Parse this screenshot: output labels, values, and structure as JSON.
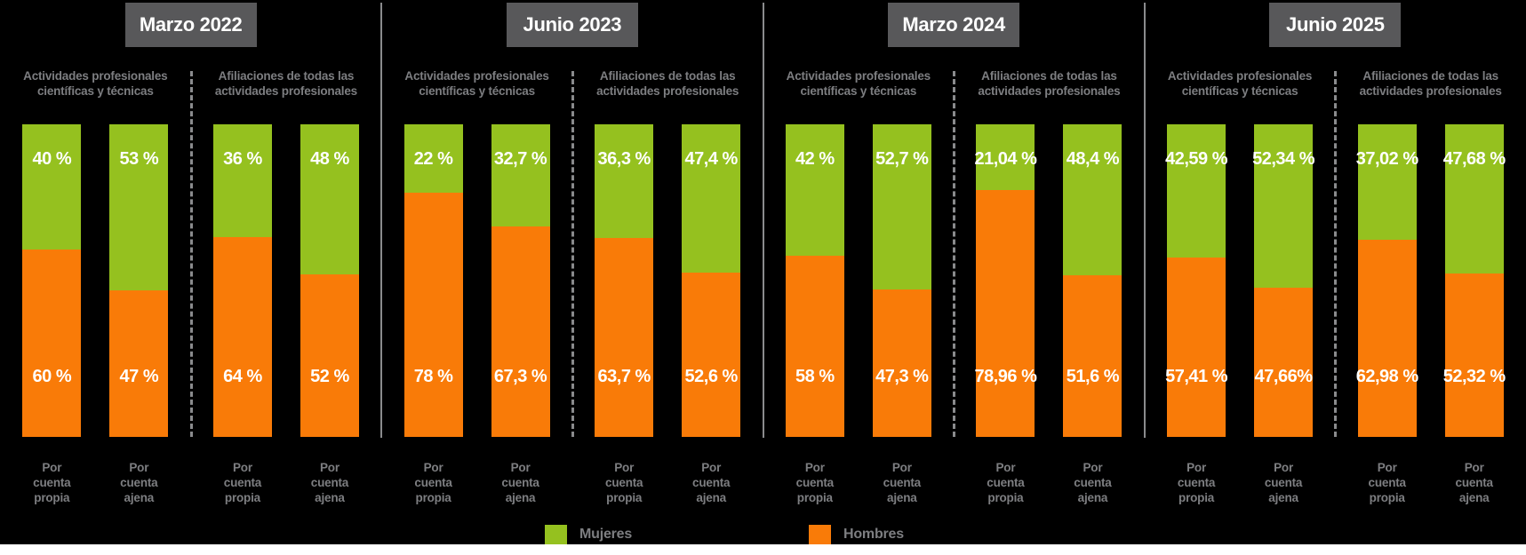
{
  "page": {
    "background_color": "#000000",
    "bottom_strip_color": "#ffffff"
  },
  "chart_data": {
    "type": "bar",
    "subtype": "stacked-100-percent",
    "orientation": "vertical",
    "unit": "%",
    "grid": false,
    "legend_position": "bottom-center",
    "colors": {
      "mujeres": "#95c11f",
      "hombres": "#f97b08",
      "period_header_box": "#58585a",
      "period_header_text": "#ffffff",
      "value_text": "#ffffff",
      "label_gray": "#7d7e81",
      "divider_gray": "#8a8b8d"
    },
    "legend": [
      {
        "label": "Mujeres",
        "color": "#95c11f"
      },
      {
        "label": "Hombres",
        "color": "#f97b08"
      }
    ],
    "periods": [
      {
        "title": "Marzo 2022",
        "groups": [
          {
            "category": "Actividades profesionales\ncientíficas y técnicas",
            "bars": [
              {
                "x_label": "Por cuenta\npropia",
                "mujeres_pct": 40,
                "hombres_pct": 60,
                "mujeres_label": "40 %",
                "hombres_label": "60 %"
              },
              {
                "x_label": "Por cuenta\najena",
                "mujeres_pct": 53,
                "hombres_pct": 47,
                "mujeres_label": "53 %",
                "hombres_label": "47 %"
              }
            ]
          },
          {
            "category": "Afiliaciones de todas las\nactividades profesionales",
            "bars": [
              {
                "x_label": "Por cuenta\npropia",
                "mujeres_pct": 36,
                "hombres_pct": 64,
                "mujeres_label": "36 %",
                "hombres_label": "64 %"
              },
              {
                "x_label": "Por cuenta\najena",
                "mujeres_pct": 48,
                "hombres_pct": 52,
                "mujeres_label": "48 %",
                "hombres_label": "52 %"
              }
            ]
          }
        ]
      },
      {
        "title": "Junio 2023",
        "groups": [
          {
            "category": "Actividades profesionales\ncientíficas y técnicas",
            "bars": [
              {
                "x_label": "Por cuenta\npropia",
                "mujeres_pct": 22,
                "hombres_pct": 78,
                "mujeres_label": "22 %",
                "hombres_label": "78 %"
              },
              {
                "x_label": "Por cuenta\najena",
                "mujeres_pct": 32.7,
                "hombres_pct": 67.3,
                "mujeres_label": "32,7 %",
                "hombres_label": "67,3 %"
              }
            ]
          },
          {
            "category": "Afiliaciones de todas las\nactividades profesionales",
            "bars": [
              {
                "x_label": "Por cuenta\npropia",
                "mujeres_pct": 36.3,
                "hombres_pct": 63.7,
                "mujeres_label": "36,3 %",
                "hombres_label": "63,7 %"
              },
              {
                "x_label": "Por cuenta\najena",
                "mujeres_pct": 47.4,
                "hombres_pct": 52.6,
                "mujeres_label": "47,4 %",
                "hombres_label": "52,6 %"
              }
            ]
          }
        ]
      },
      {
        "title": "Marzo 2024",
        "groups": [
          {
            "category": "Actividades profesionales\ncientíficas y técnicas",
            "bars": [
              {
                "x_label": "Por cuenta\npropia",
                "mujeres_pct": 42,
                "hombres_pct": 58,
                "mujeres_label": "42 %",
                "hombres_label": "58 %"
              },
              {
                "x_label": "Por cuenta\najena",
                "mujeres_pct": 52.7,
                "hombres_pct": 47.3,
                "mujeres_label": "52,7 %",
                "hombres_label": "47,3 %"
              }
            ]
          },
          {
            "category": "Afiliaciones de todas las\nactividades profesionales",
            "bars": [
              {
                "x_label": "Por cuenta\npropia",
                "mujeres_pct": 21.04,
                "hombres_pct": 78.96,
                "mujeres_label": "21,04 %",
                "hombres_label": "78,96 %"
              },
              {
                "x_label": "Por cuenta\najena",
                "mujeres_pct": 48.4,
                "hombres_pct": 51.6,
                "mujeres_label": "48,4 %",
                "hombres_label": "51,6 %"
              }
            ]
          }
        ]
      },
      {
        "title": "Junio 2025",
        "groups": [
          {
            "category": "Actividades profesionales\ncientíficas y técnicas",
            "bars": [
              {
                "x_label": "Por cuenta\npropia",
                "mujeres_pct": 42.59,
                "hombres_pct": 57.41,
                "mujeres_label": "42,59 %",
                "hombres_label": "57,41 %"
              },
              {
                "x_label": "Por cuenta\najena",
                "mujeres_pct": 52.34,
                "hombres_pct": 47.66,
                "mujeres_label": "52,34 %",
                "hombres_label": "47,66%"
              }
            ]
          },
          {
            "category": "Afiliaciones de todas las\nactividades profesionales",
            "bars": [
              {
                "x_label": "Por cuenta\npropia",
                "mujeres_pct": 37.02,
                "hombres_pct": 62.98,
                "mujeres_label": "37,02 %",
                "hombres_label": "62,98 %"
              },
              {
                "x_label": "Por cuenta\najena",
                "mujeres_pct": 47.68,
                "hombres_pct": 52.32,
                "mujeres_label": "47,68 %",
                "hombres_label": "52,32 %"
              }
            ]
          }
        ]
      }
    ]
  }
}
